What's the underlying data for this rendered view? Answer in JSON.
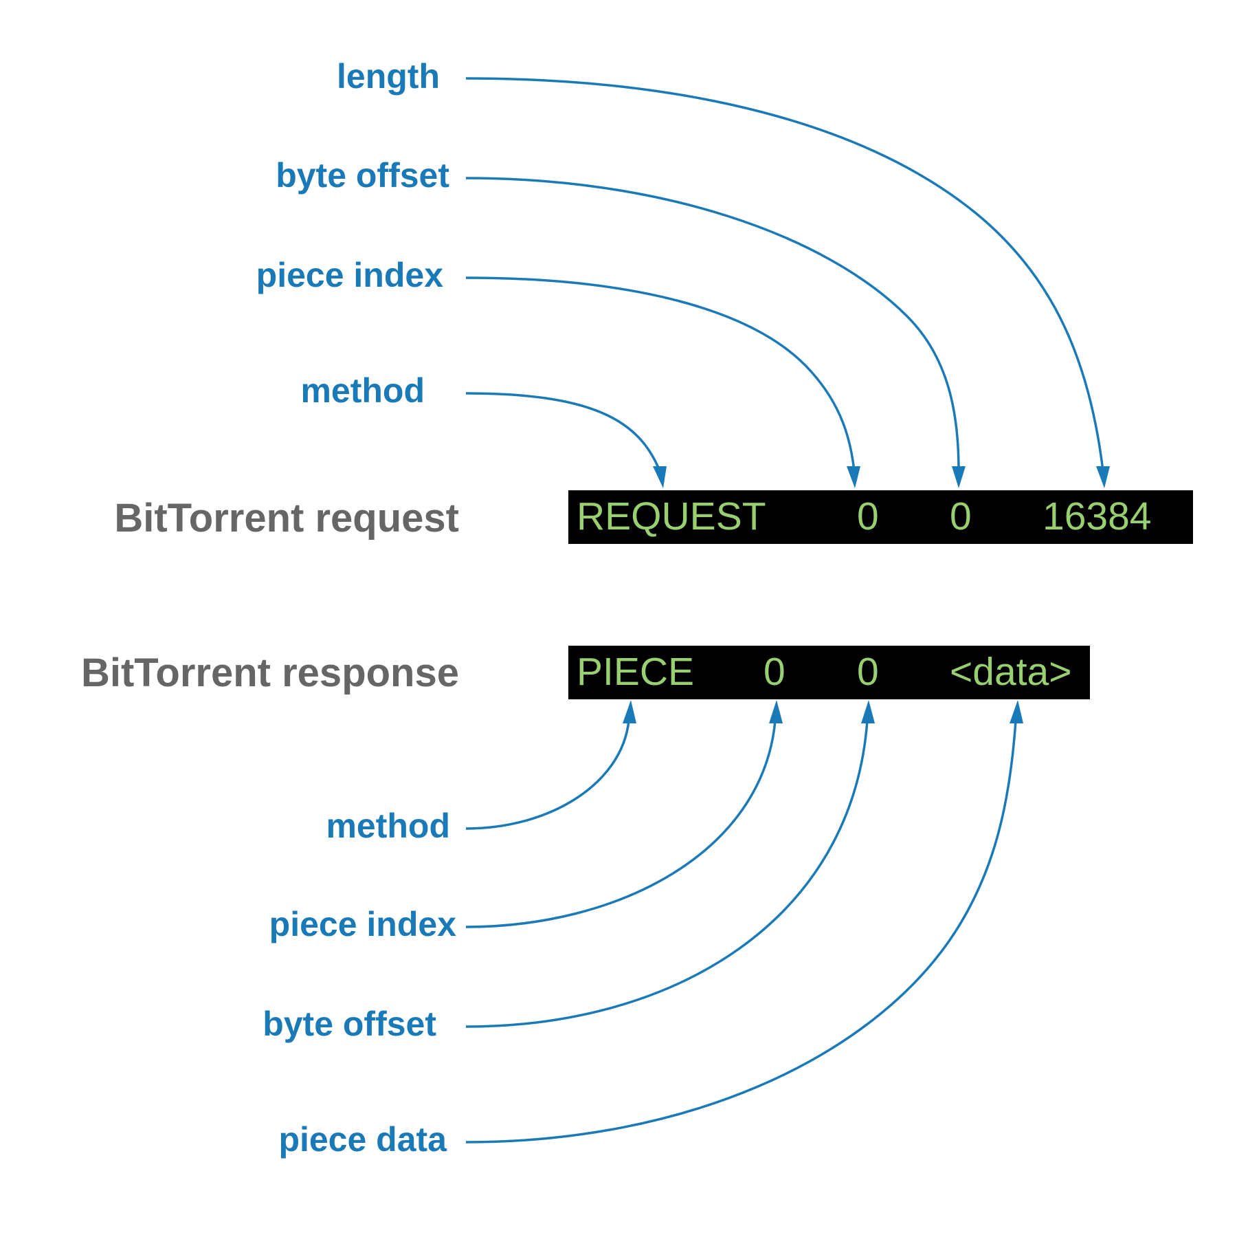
{
  "request": {
    "label": "BitTorrent request",
    "tokens": [
      "REQUEST",
      "0",
      "0",
      "16384"
    ],
    "fields": [
      "length",
      "byte offset",
      "piece index",
      "method"
    ]
  },
  "response": {
    "label": "BitTorrent response",
    "tokens": [
      "PIECE",
      "0",
      "0",
      "<data>"
    ],
    "fields": [
      "method",
      "piece index",
      "byte offset",
      "piece data"
    ]
  },
  "colors": {
    "field_label": "#1a7ab8",
    "message_label": "#666666",
    "box_background": "#000000",
    "token_text": "#98cf70",
    "arrow": "#1a7ab8"
  }
}
